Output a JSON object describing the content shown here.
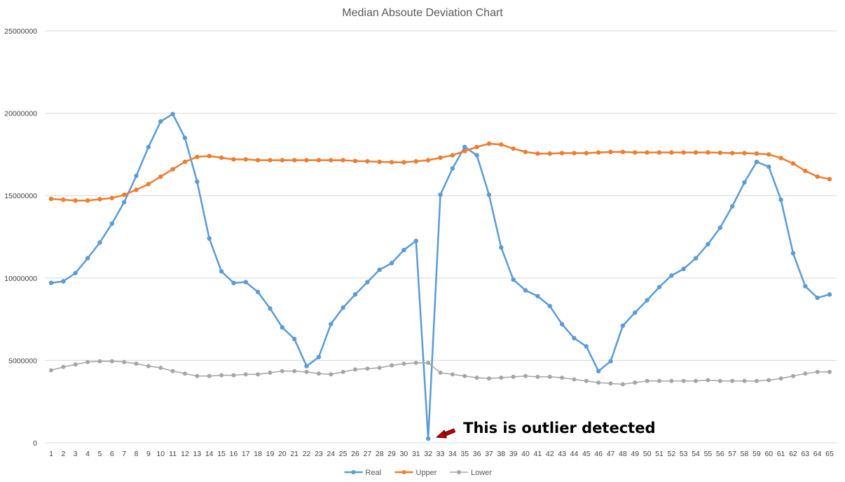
{
  "chart_data": {
    "type": "line",
    "title": "Median Absoute Deviation Chart",
    "xlabel": "",
    "ylabel": "",
    "ylim": [
      0,
      25000000
    ],
    "y_ticks": [
      0,
      5000000,
      10000000,
      15000000,
      20000000,
      25000000
    ],
    "y_tick_labels": [
      "0",
      "5000000",
      "10000000",
      "15000000",
      "20000000",
      "25000000"
    ],
    "categories": [
      "1",
      "2",
      "3",
      "4",
      "5",
      "6",
      "7",
      "8",
      "9",
      "10",
      "11",
      "12",
      "13",
      "14",
      "15",
      "16",
      "17",
      "18",
      "19",
      "20",
      "21",
      "22",
      "23",
      "24",
      "25",
      "26",
      "27",
      "28",
      "29",
      "30",
      "31",
      "32",
      "33",
      "34",
      "35",
      "36",
      "37",
      "38",
      "39",
      "40",
      "41",
      "42",
      "43",
      "44",
      "45",
      "46",
      "47",
      "48",
      "49",
      "50",
      "51",
      "52",
      "53",
      "54",
      "55",
      "56",
      "57",
      "58",
      "59",
      "60",
      "61",
      "62",
      "63",
      "64",
      "65"
    ],
    "grid": true,
    "legend_position": "bottom",
    "series": [
      {
        "name": "Real",
        "color": "#5b9bd5",
        "values": [
          9700000,
          9800000,
          10300000,
          11200000,
          12150000,
          13300000,
          14600000,
          16200000,
          17950000,
          19500000,
          19950000,
          18500000,
          15850000,
          12400000,
          10400000,
          9700000,
          9750000,
          9150000,
          8150000,
          7000000,
          6300000,
          4650000,
          5200000,
          7200000,
          8200000,
          9000000,
          9750000,
          10500000,
          10900000,
          11700000,
          12250000,
          250000,
          15050000,
          16650000,
          17950000,
          17450000,
          15050000,
          11850000,
          9900000,
          9250000,
          8900000,
          8300000,
          7200000,
          6350000,
          5850000,
          4350000,
          4950000,
          7100000,
          7900000,
          8650000,
          9450000,
          10150000,
          10550000,
          11200000,
          12050000,
          13050000,
          14350000,
          15800000,
          17050000,
          16750000,
          14750000,
          11500000,
          9500000,
          8800000,
          9000000
        ]
      },
      {
        "name": "Upper",
        "color": "#ed7d31",
        "values": [
          14800000,
          14750000,
          14700000,
          14700000,
          14780000,
          14850000,
          15050000,
          15350000,
          15700000,
          16150000,
          16600000,
          17050000,
          17350000,
          17400000,
          17300000,
          17200000,
          17200000,
          17150000,
          17150000,
          17150000,
          17150000,
          17150000,
          17150000,
          17150000,
          17150000,
          17100000,
          17080000,
          17050000,
          17030000,
          17020000,
          17080000,
          17150000,
          17300000,
          17450000,
          17700000,
          17950000,
          18150000,
          18100000,
          17850000,
          17650000,
          17550000,
          17550000,
          17580000,
          17580000,
          17580000,
          17620000,
          17650000,
          17650000,
          17620000,
          17620000,
          17620000,
          17620000,
          17620000,
          17620000,
          17620000,
          17600000,
          17580000,
          17580000,
          17550000,
          17500000,
          17280000,
          16950000,
          16500000,
          16150000,
          16000000
        ]
      },
      {
        "name": "Lower",
        "color": "#a5a5a5",
        "values": [
          4400000,
          4600000,
          4750000,
          4900000,
          4950000,
          4950000,
          4900000,
          4800000,
          4650000,
          4550000,
          4350000,
          4200000,
          4050000,
          4050000,
          4100000,
          4100000,
          4150000,
          4150000,
          4250000,
          4350000,
          4350000,
          4300000,
          4200000,
          4150000,
          4300000,
          4450000,
          4500000,
          4550000,
          4700000,
          4800000,
          4850000,
          4850000,
          4250000,
          4150000,
          4050000,
          3950000,
          3900000,
          3950000,
          4000000,
          4050000,
          4000000,
          4000000,
          3950000,
          3850000,
          3750000,
          3650000,
          3600000,
          3550000,
          3650000,
          3750000,
          3750000,
          3750000,
          3750000,
          3750000,
          3800000,
          3750000,
          3750000,
          3750000,
          3750000,
          3800000,
          3900000,
          4050000,
          4200000,
          4300000,
          4300000
        ]
      }
    ],
    "annotations": [
      {
        "text": "This is outlier detected",
        "target_category": "32",
        "arrow_color": "#c00000"
      }
    ]
  }
}
